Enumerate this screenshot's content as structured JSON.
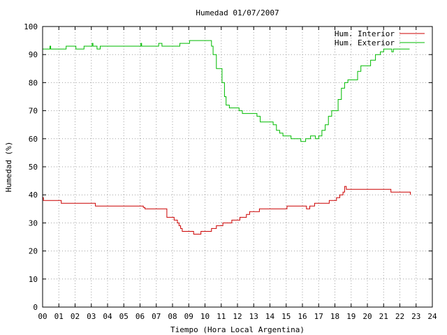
{
  "chart_data": {
    "type": "line",
    "title": "Humedad 01/07/2007",
    "xlabel": "Tiempo (Hora Local Argentina)",
    "ylabel": "Humedad (%)",
    "xlim": [
      0,
      24
    ],
    "ylim": [
      0,
      100
    ],
    "x_ticks": [
      "00",
      "01",
      "02",
      "03",
      "04",
      "05",
      "06",
      "07",
      "08",
      "09",
      "10",
      "11",
      "12",
      "13",
      "14",
      "15",
      "16",
      "17",
      "18",
      "19",
      "20",
      "21",
      "22",
      "23",
      "24"
    ],
    "y_ticks": [
      0,
      10,
      20,
      30,
      40,
      50,
      60,
      70,
      80,
      90,
      100
    ],
    "grid": true,
    "legend_position": "top-right",
    "series": [
      {
        "name": "Hum. Interior",
        "color": "#cc0000",
        "points": [
          [
            0.0,
            39
          ],
          [
            0.05,
            38
          ],
          [
            1.1,
            38
          ],
          [
            1.15,
            37
          ],
          [
            3.2,
            37
          ],
          [
            3.25,
            36
          ],
          [
            6.1,
            36
          ],
          [
            6.2,
            35.5
          ],
          [
            6.3,
            35
          ],
          [
            7.6,
            35
          ],
          [
            7.65,
            32
          ],
          [
            8.0,
            32
          ],
          [
            8.1,
            31
          ],
          [
            8.3,
            30
          ],
          [
            8.4,
            29
          ],
          [
            8.5,
            28
          ],
          [
            8.6,
            27
          ],
          [
            9.2,
            27
          ],
          [
            9.3,
            26
          ],
          [
            9.7,
            26
          ],
          [
            9.75,
            27
          ],
          [
            10.3,
            27
          ],
          [
            10.4,
            28
          ],
          [
            10.6,
            28
          ],
          [
            10.7,
            29
          ],
          [
            11.0,
            29
          ],
          [
            11.1,
            30
          ],
          [
            11.6,
            30
          ],
          [
            11.65,
            31
          ],
          [
            12.1,
            31
          ],
          [
            12.15,
            32
          ],
          [
            12.5,
            32
          ],
          [
            12.55,
            33
          ],
          [
            12.7,
            33
          ],
          [
            12.75,
            34
          ],
          [
            13.3,
            34
          ],
          [
            13.35,
            35
          ],
          [
            15.0,
            35
          ],
          [
            15.05,
            36
          ],
          [
            16.2,
            36
          ],
          [
            16.25,
            35
          ],
          [
            16.4,
            35
          ],
          [
            16.45,
            36
          ],
          [
            16.7,
            36
          ],
          [
            16.75,
            37
          ],
          [
            17.6,
            37
          ],
          [
            17.65,
            38
          ],
          [
            18.0,
            38
          ],
          [
            18.1,
            39
          ],
          [
            18.3,
            40
          ],
          [
            18.5,
            41
          ],
          [
            18.6,
            43
          ],
          [
            18.7,
            42
          ],
          [
            21.4,
            42
          ],
          [
            21.45,
            41
          ],
          [
            22.6,
            41
          ],
          [
            22.65,
            40
          ]
        ]
      },
      {
        "name": "Hum. Exterior",
        "color": "#00bb00",
        "points": [
          [
            0.0,
            92
          ],
          [
            0.4,
            92
          ],
          [
            0.45,
            93
          ],
          [
            0.5,
            92
          ],
          [
            1.4,
            92
          ],
          [
            1.45,
            93
          ],
          [
            2.0,
            93
          ],
          [
            2.05,
            92
          ],
          [
            2.5,
            92
          ],
          [
            2.55,
            93
          ],
          [
            3.0,
            93
          ],
          [
            3.05,
            94
          ],
          [
            3.1,
            93
          ],
          [
            3.3,
            93
          ],
          [
            3.35,
            92
          ],
          [
            3.5,
            92
          ],
          [
            3.55,
            93
          ],
          [
            6.0,
            93
          ],
          [
            6.05,
            94
          ],
          [
            6.1,
            93
          ],
          [
            7.1,
            93
          ],
          [
            7.15,
            94
          ],
          [
            7.3,
            94
          ],
          [
            7.35,
            93
          ],
          [
            7.6,
            93
          ],
          [
            8.4,
            93
          ],
          [
            8.45,
            94
          ],
          [
            9.0,
            94
          ],
          [
            9.05,
            95
          ],
          [
            10.3,
            95
          ],
          [
            10.4,
            93
          ],
          [
            10.5,
            90
          ],
          [
            10.7,
            85
          ],
          [
            11.0,
            85
          ],
          [
            11.05,
            80
          ],
          [
            11.2,
            75
          ],
          [
            11.3,
            72
          ],
          [
            11.5,
            71
          ],
          [
            12.0,
            71
          ],
          [
            12.1,
            70
          ],
          [
            12.3,
            69
          ],
          [
            13.0,
            69
          ],
          [
            13.2,
            68
          ],
          [
            13.4,
            66
          ],
          [
            13.6,
            66
          ],
          [
            13.8,
            66
          ],
          [
            14.0,
            66
          ],
          [
            14.2,
            65
          ],
          [
            14.4,
            63
          ],
          [
            14.6,
            62
          ],
          [
            14.8,
            61
          ],
          [
            15.0,
            61
          ],
          [
            15.3,
            60
          ],
          [
            15.6,
            60
          ],
          [
            15.9,
            59
          ],
          [
            16.2,
            60
          ],
          [
            16.5,
            61
          ],
          [
            16.8,
            60
          ],
          [
            17.0,
            61
          ],
          [
            17.2,
            63
          ],
          [
            17.4,
            65
          ],
          [
            17.6,
            68
          ],
          [
            17.8,
            70
          ],
          [
            18.1,
            70
          ],
          [
            18.2,
            74
          ],
          [
            18.4,
            78
          ],
          [
            18.6,
            80
          ],
          [
            18.8,
            81
          ],
          [
            19.3,
            81
          ],
          [
            19.4,
            84
          ],
          [
            19.6,
            86
          ],
          [
            20.1,
            86
          ],
          [
            20.2,
            88
          ],
          [
            20.5,
            90
          ],
          [
            20.8,
            91
          ],
          [
            21.0,
            92
          ],
          [
            21.4,
            92
          ],
          [
            21.5,
            91
          ],
          [
            21.6,
            92
          ],
          [
            22.0,
            92
          ],
          [
            22.1,
            92
          ],
          [
            22.6,
            92
          ]
        ]
      }
    ]
  }
}
